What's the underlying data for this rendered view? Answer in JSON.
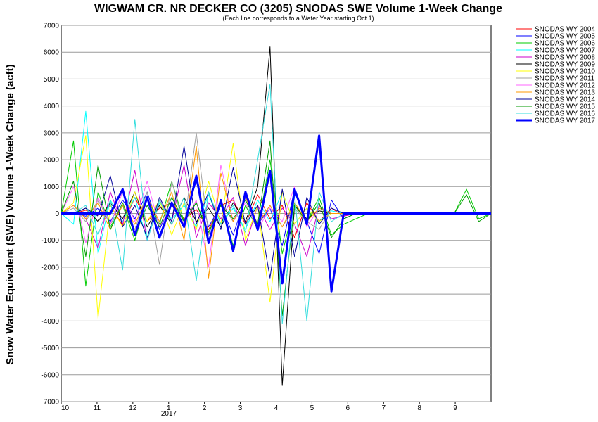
{
  "chart_data": {
    "type": "line",
    "title": "WIGWAM CR. NR DECKER CO (3205) SNODAS SWE Volume 1-Week Change",
    "subtitle": "(Each line corresponds to a Water Year starting Oct 1)",
    "ylabel": "Snow Water Equivalent (SWE) Volume 1-Week Change (acft)",
    "xlabel": "",
    "ylim": [
      -7000,
      7000
    ],
    "yticks": [
      "7000",
      "6000",
      "5000",
      "4000",
      "3000",
      "2000",
      "1000",
      "0",
      "-1000",
      "-2000",
      "-3000",
      "-4000",
      "-5000",
      "-6000",
      "-7000"
    ],
    "xticks": [
      "10",
      "11",
      "12",
      "1",
      "2",
      "3",
      "4",
      "5",
      "6",
      "7",
      "8",
      "9"
    ],
    "year_label": "2017",
    "grid": true,
    "legend_position": "right",
    "series": [
      {
        "name": "SNODAS WY 2004",
        "color": "#ff0000",
        "width": 1,
        "values": [
          0,
          0,
          120,
          -80,
          300,
          -450,
          600,
          -300,
          200,
          400,
          -200,
          150,
          -600,
          300,
          500,
          -400,
          700,
          -200,
          300,
          -900,
          400,
          -300,
          200,
          -100,
          0,
          0,
          0,
          0,
          0,
          0,
          0,
          0,
          0,
          0,
          0,
          0
        ]
      },
      {
        "name": "SNODAS WY 2005",
        "color": "#0000ff",
        "width": 1,
        "values": [
          0,
          0,
          -100,
          200,
          -300,
          500,
          -200,
          800,
          -600,
          400,
          -300,
          1200,
          -500,
          300,
          -800,
          600,
          -400,
          200,
          -1200,
          900,
          -300,
          -1500,
          500,
          -200,
          0,
          0,
          0,
          0,
          0,
          0,
          0,
          0,
          0,
          0,
          0,
          0
        ]
      },
      {
        "name": "SNODAS WY 2006",
        "color": "#00cc00",
        "width": 1,
        "values": [
          0,
          2700,
          -2700,
          800,
          -500,
          300,
          -1000,
          600,
          -400,
          1200,
          -300,
          400,
          -800,
          500,
          -1200,
          300,
          -600,
          2000,
          -1500,
          400,
          -300,
          600,
          -800,
          -400,
          -200,
          0,
          0,
          0,
          0,
          0,
          0,
          0,
          0,
          900,
          -200,
          0
        ]
      },
      {
        "name": "SNODAS WY 2007",
        "color": "#00ffff",
        "width": 1,
        "values": [
          0,
          -400,
          3800,
          -1500,
          500,
          -300,
          600,
          -1000,
          400,
          -200,
          300,
          -500,
          700,
          -400,
          200,
          -600,
          500,
          -300,
          800,
          -400,
          200,
          -300,
          100,
          0,
          0,
          0,
          0,
          0,
          0,
          0,
          0,
          0,
          0,
          0,
          0,
          0
        ]
      },
      {
        "name": "SNODAS WY 2008",
        "color": "#cc00cc",
        "width": 1,
        "values": [
          0,
          300,
          -200,
          -1300,
          800,
          -400,
          1600,
          -1000,
          500,
          -300,
          1800,
          -900,
          400,
          -200,
          600,
          -1200,
          300,
          -600,
          200,
          -400,
          -1600,
          300,
          -200,
          -100,
          0,
          0,
          0,
          0,
          0,
          0,
          0,
          0,
          0,
          0,
          0,
          0
        ]
      },
      {
        "name": "SNODAS WY 2009",
        "color": "#000000",
        "width": 1,
        "values": [
          0,
          0,
          200,
          -300,
          400,
          -200,
          800,
          -500,
          300,
          -400,
          600,
          -300,
          200,
          -500,
          400,
          -300,
          1000,
          6200,
          -6400,
          300,
          -200,
          100,
          0,
          0,
          0,
          0,
          0,
          0,
          0,
          0,
          0,
          0,
          0,
          0,
          0,
          0
        ]
      },
      {
        "name": "SNODAS WY 2010",
        "color": "#ffff00",
        "width": 1,
        "values": [
          0,
          400,
          2900,
          -3900,
          300,
          -500,
          800,
          -300,
          500,
          -800,
          400,
          -600,
          1200,
          -400,
          2600,
          -1000,
          300,
          -3300,
          800,
          -400,
          200,
          -300,
          0,
          0,
          0,
          0,
          0,
          0,
          0,
          0,
          0,
          0,
          0,
          0,
          0,
          0
        ]
      },
      {
        "name": "SNODAS WY 2011",
        "color": "#a0a0a0",
        "width": 1,
        "values": [
          0,
          200,
          -300,
          500,
          -400,
          300,
          -600,
          800,
          -1900,
          1200,
          -500,
          3000,
          -800,
          400,
          -300,
          600,
          -400,
          300,
          -500,
          200,
          -300,
          -600,
          200,
          0,
          0,
          0,
          0,
          0,
          0,
          0,
          0,
          0,
          0,
          0,
          0,
          0
        ]
      },
      {
        "name": "SNODAS WY 2012",
        "color": "#ff66ff",
        "width": 1,
        "values": [
          0,
          1000,
          -1100,
          600,
          -400,
          800,
          -300,
          1200,
          -500,
          300,
          -400,
          500,
          -2000,
          1800,
          -300,
          400,
          -600,
          200,
          -300,
          1000,
          -500,
          200,
          0,
          0,
          0,
          0,
          0,
          0,
          0,
          0,
          0,
          0,
          0,
          0,
          0,
          0
        ]
      },
      {
        "name": "SNODAS WY 2013",
        "color": "#ff9900",
        "width": 1,
        "values": [
          0,
          300,
          -200,
          400,
          -600,
          300,
          -400,
          600,
          -300,
          800,
          -1000,
          2500,
          -2400,
          1500,
          -300,
          600,
          -400,
          300,
          -500,
          400,
          -300,
          200,
          0,
          0,
          0,
          0,
          0,
          0,
          0,
          0,
          0,
          0,
          0,
          0,
          0,
          0
        ]
      },
      {
        "name": "SNODAS WY 2014",
        "color": "#000099",
        "width": 1,
        "values": [
          0,
          0,
          200,
          -100,
          1400,
          -500,
          300,
          -900,
          600,
          -300,
          2500,
          -400,
          800,
          -600,
          1700,
          -400,
          300,
          -2400,
          900,
          -1600,
          600,
          -400,
          200,
          0,
          0,
          0,
          0,
          0,
          0,
          0,
          0,
          0,
          0,
          0,
          0,
          0
        ]
      },
      {
        "name": "SNODAS WY 2015",
        "color": "#009900",
        "width": 1,
        "values": [
          0,
          1200,
          -1600,
          1800,
          -600,
          400,
          -800,
          300,
          -500,
          600,
          -300,
          400,
          -700,
          300,
          -200,
          500,
          -400,
          2700,
          -3800,
          300,
          -300,
          400,
          -900,
          -200,
          0,
          0,
          0,
          0,
          0,
          0,
          0,
          0,
          0,
          700,
          -300,
          0
        ]
      },
      {
        "name": "SNODAS WY 2016",
        "color": "#33dddd",
        "width": 1,
        "values": [
          0,
          0,
          300,
          -800,
          500,
          -2100,
          3500,
          -1000,
          500,
          -400,
          600,
          -2500,
          800,
          -400,
          300,
          -700,
          2000,
          4800,
          -4100,
          700,
          -4000,
          800,
          -300,
          0,
          0,
          0,
          0,
          0,
          0,
          0,
          0,
          0,
          0,
          0,
          0,
          0
        ]
      },
      {
        "name": "SNODAS WY 2017",
        "color": "#0000ff",
        "width": 3,
        "values": [
          0,
          0,
          0,
          0,
          0,
          900,
          -800,
          600,
          -900,
          400,
          -500,
          1400,
          -1100,
          500,
          -1400,
          800,
          -600,
          1600,
          -2600,
          900,
          -400,
          2900,
          -2900,
          0,
          0,
          0,
          0,
          0,
          0,
          0,
          0,
          0,
          0,
          0,
          0,
          0
        ]
      }
    ]
  }
}
